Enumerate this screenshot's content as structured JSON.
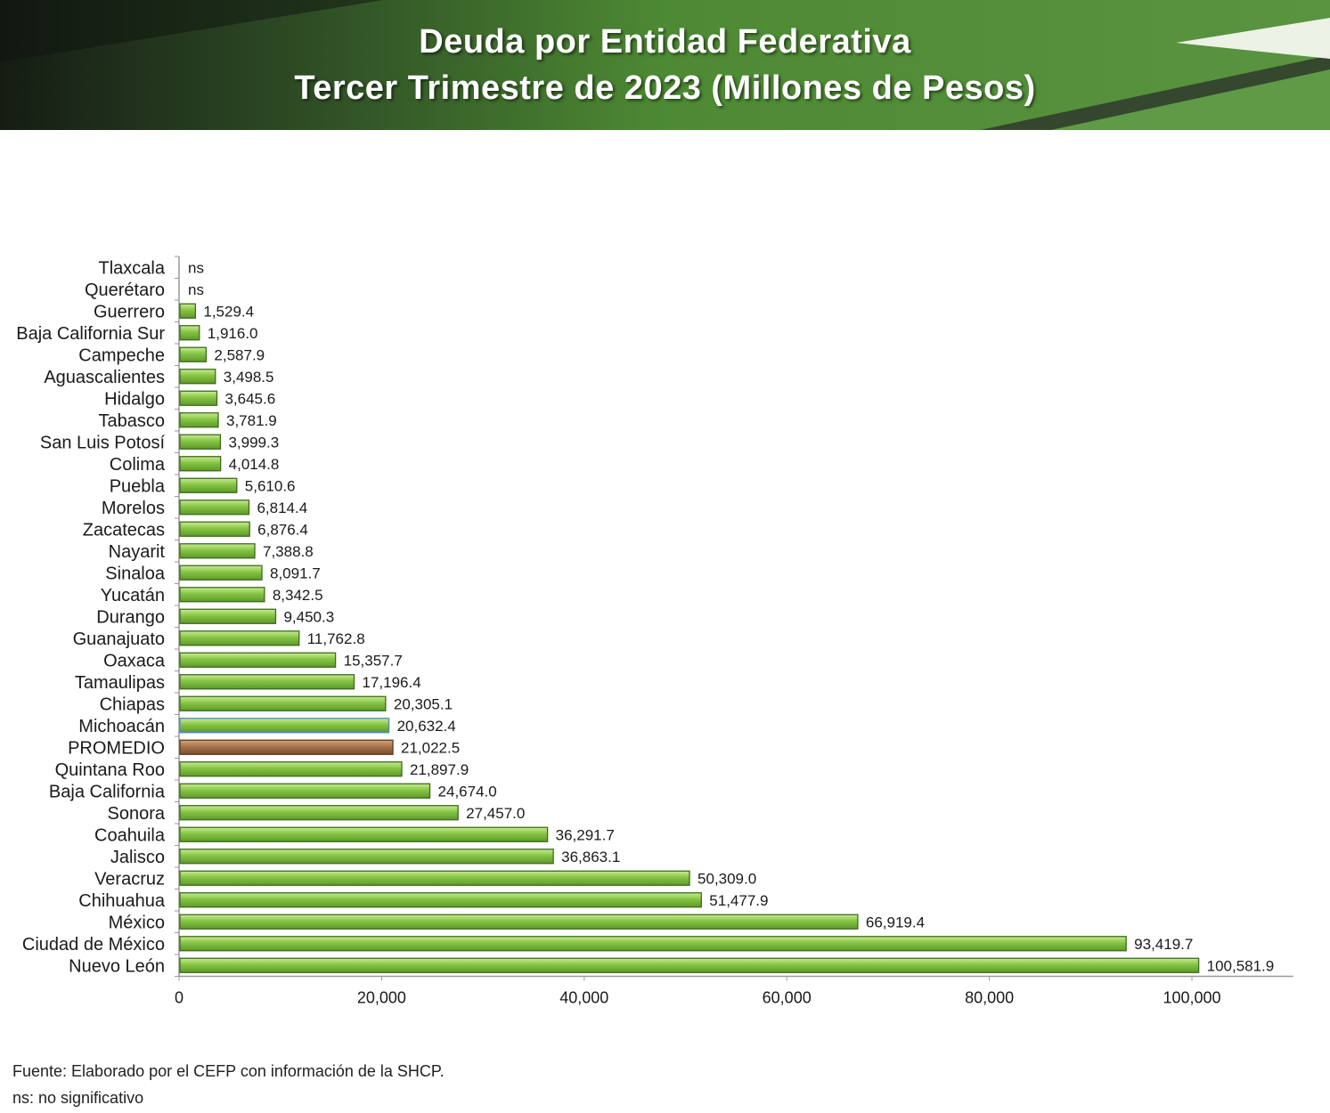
{
  "header": {
    "title_line1": "Deuda por Entidad Federativa",
    "title_line2": "Tercer Trimestre de 2023 (Millones de Pesos)",
    "colors": {
      "dark": "#1e2a1c",
      "green": "#4f8a35",
      "light_green": "#7fb457"
    }
  },
  "chart_data": {
    "type": "bar",
    "orientation": "horizontal",
    "title": "Deuda por Entidad Federativa Tercer Trimestre de 2023 (Millones de Pesos)",
    "xlabel": "",
    "ylabel": "",
    "xlim": [
      0,
      110000
    ],
    "ticks": [
      0,
      20000,
      40000,
      60000,
      80000,
      100000
    ],
    "tick_labels": [
      "0",
      "20,000",
      "40,000",
      "60,000",
      "80,000",
      "100,000"
    ],
    "grid": false,
    "colors": {
      "bar": "#8cc63f",
      "bar_edge": "#3e6b1c",
      "highlight": "#a0704a",
      "highlight_edge": "#5c3a1e",
      "michoacan_edge": "#4a90b8"
    },
    "categories": [
      "Tlaxcala",
      "Querétaro",
      "Guerrero",
      "Baja California Sur",
      "Campeche",
      "Aguascalientes",
      "Hidalgo",
      "Tabasco",
      "San Luis Potosí",
      "Colima",
      "Puebla",
      "Morelos",
      "Zacatecas",
      "Nayarit",
      "Sinaloa",
      "Yucatán",
      "Durango",
      "Guanajuato",
      "Oaxaca",
      "Tamaulipas",
      "Chiapas",
      "Michoacán",
      "PROMEDIO",
      "Quintana Roo",
      "Baja California",
      "Sonora",
      "Coahuila",
      "Jalisco",
      "Veracruz",
      "Chihuahua",
      "México",
      "Ciudad de México",
      "Nuevo León"
    ],
    "values": [
      0,
      0,
      1529.4,
      1916.0,
      2587.9,
      3498.5,
      3645.6,
      3781.9,
      3999.3,
      4014.8,
      5610.6,
      6814.4,
      6876.4,
      7388.8,
      8091.7,
      8342.5,
      9450.3,
      11762.8,
      15357.7,
      17196.4,
      20305.1,
      20632.4,
      21022.5,
      21897.9,
      24674.0,
      27457.0,
      36291.7,
      36863.1,
      50309.0,
      51477.9,
      66919.4,
      93419.7,
      100581.9
    ],
    "value_labels": [
      "ns",
      "ns",
      "1,529.4",
      "1,916.0",
      "2,587.9",
      "3,498.5",
      "3,645.6",
      "3,781.9",
      "3,999.3",
      "4,014.8",
      "5,610.6",
      "6,814.4",
      "6,876.4",
      "7,388.8",
      "8,091.7",
      "8,342.5",
      "9,450.3",
      "11,762.8",
      "15,357.7",
      "17,196.4",
      "20,305.1",
      "20,632.4",
      "21,022.5",
      "21,897.9",
      "24,674.0",
      "27,457.0",
      "36,291.7",
      "36,863.1",
      "50,309.0",
      "51,477.9",
      "66,919.4",
      "93,419.7",
      "100,581.9"
    ],
    "highlight": "PROMEDIO"
  },
  "footer": {
    "source": "Fuente: Elaborado por el CEFP con información de la SHCP.",
    "note": "ns: no significativo"
  }
}
